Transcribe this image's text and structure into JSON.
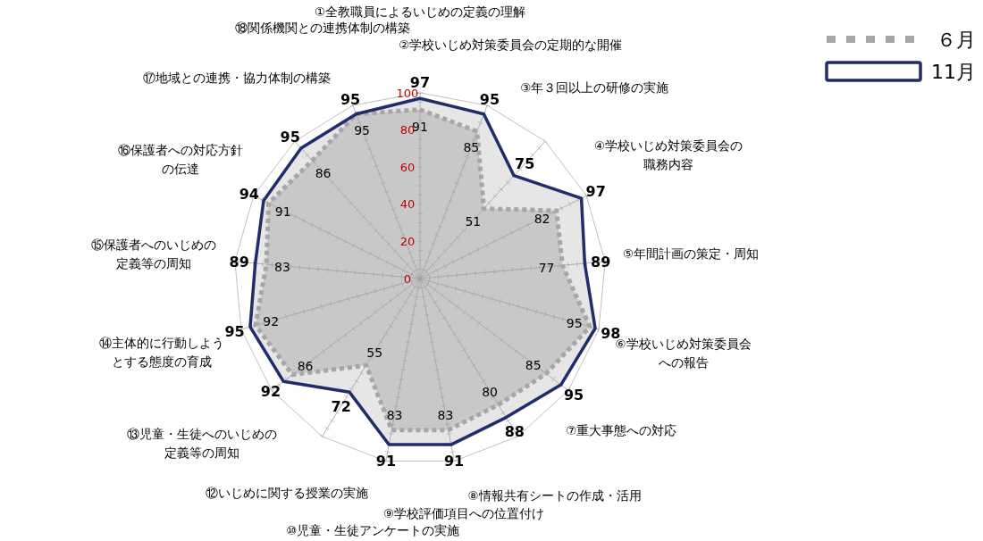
{
  "chart_data": {
    "type": "radar",
    "categories": [
      "①全教職員によるいじめの定義の理解",
      "②学校いじめ対策委員会の定期的な開催",
      "③年３回以上の研修の実施",
      "④学校いじめ対策委員会の職務内容",
      "⑤年間計画の策定・周知",
      "⑥学校いじめ対策委員会への報告",
      "⑦重大事態への対応",
      "⑧情報共有シートの作成・活用",
      "⑨学校評価項目への位置付け",
      "⑩児童・生徒アンケートの実施",
      "⑫いじめに関する授業の実施",
      "⑬児童・生徒へのいじめの定義等の周知",
      "⑭主体的に行動しようとする態度の育成",
      "⑮保護者へのいじめの定義等の周知",
      "⑯保護者への対応方針の伝達",
      "⑰地域との連携・協力体制の構築",
      "⑱関係機関との連携体制の構築"
    ],
    "series": [
      {
        "name": "６月",
        "color": "#a6a6a6",
        "line_style": "dotted",
        "values": [
          91,
          85,
          51,
          82,
          77,
          95,
          85,
          80,
          83,
          83,
          55,
          86,
          92,
          83,
          91,
          86,
          95
        ]
      },
      {
        "name": "11月",
        "color": "#1f2d6b",
        "line_style": "solid",
        "values": [
          97,
          95,
          75,
          97,
          89,
          98,
          95,
          88,
          91,
          91,
          72,
          92,
          95,
          89,
          94,
          95,
          95
        ]
      }
    ],
    "ylim": [
      0,
      100
    ],
    "yticks": [
      0,
      20,
      40,
      60,
      80,
      100
    ],
    "grid": true,
    "data_labels": true,
    "legend": "top right"
  }
}
